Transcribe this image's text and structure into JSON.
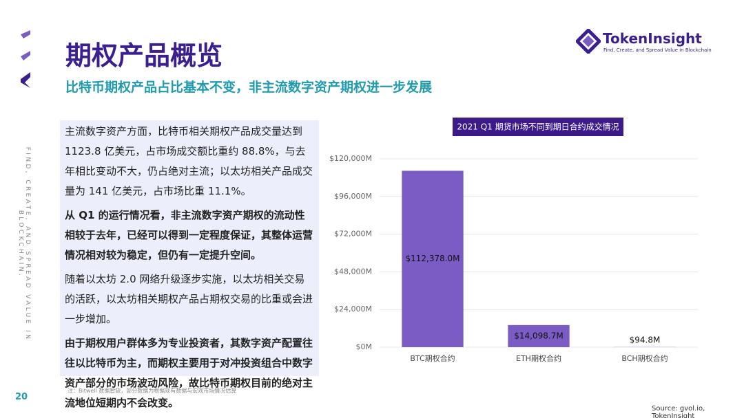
{
  "header": {
    "title": "期权产品概览",
    "subtitle": "比特币期权产品占比基本不变，非主流数字资产期权进一步发展",
    "logo": "TokenInsight",
    "tagline": "Find, Create, and Spread Value in Blockchain"
  },
  "side_text": "FIND, CREATE, AND SPREAD VALUE IN BLOCKCHAIN.",
  "paragraphs": [
    {
      "text": "主流数字资产方面，比特币相关期权产品成交量达到 1123.8 亿美元，占市场成交额比重约 88.8%，与去年相比变动不大，仍占绝对主流；以太坊相关产品成交量为 141 亿美元，占市场比重 11.1%。",
      "bold": false
    },
    {
      "text": "从 Q1 的运行情况看，非主流数字资产期权的流动性相较于去年，已经可以得到一定程度保证，其整体运营情况相对较为稳定，但仍有一定提升空间。",
      "bold": true
    },
    {
      "text": "随着以太坊 2.0 网络升级逐步实施，以太坊相关交易的活跃，以太坊相关期权产品占期权交易的比重或会进一步增加。",
      "bold": false
    },
    {
      "text": "由于期权用户群体多为专业投资者，其数字资产配置往往以比特币为主，而期权主要用于对冲投资组合中数字资产部分的市场波动风险，故比特币期权目前的绝对主流地位短期内不会改变。",
      "bold": true
    }
  ],
  "note": "注：Bitwell 数据暂缺，部分数据为根据现有数据与宏观市场情况估算",
  "page_number": "20",
  "source": "Source: gvol.io, TokenInsight",
  "chart_data": {
    "type": "bar",
    "title": "2021 Q1 期货市场不同到期日合约成交情况",
    "categories": [
      "BTC期权合约",
      "ETH期权合约",
      "BCH期权合约"
    ],
    "values": [
      112378.0,
      14098.7,
      94.8
    ],
    "value_labels": [
      "$112,378.0M",
      "$14,098.7M",
      "$94.8M"
    ],
    "color": "#7b5cc4",
    "ylim": [
      0,
      120000
    ],
    "yticks": [
      {
        "value": 0,
        "label": "$0M"
      },
      {
        "value": 24000,
        "label": "$24,000M"
      },
      {
        "value": 48000,
        "label": "$48,000M"
      },
      {
        "value": 72000,
        "label": "$72,000M"
      },
      {
        "value": 96000,
        "label": "$96,000M"
      },
      {
        "value": 120000,
        "label": "$120,000M"
      }
    ],
    "grid": true
  }
}
